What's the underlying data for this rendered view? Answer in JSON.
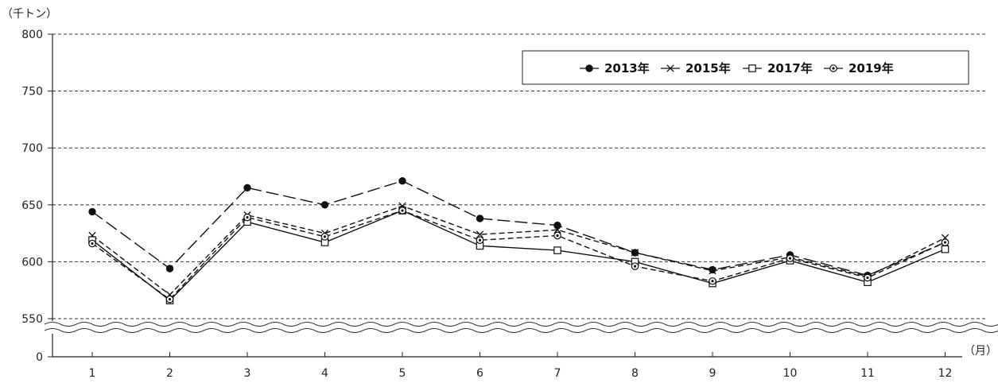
{
  "chart_data": {
    "type": "line",
    "ylabel": "（千トン）",
    "xlabel": "（月）",
    "categories": [
      "1",
      "2",
      "3",
      "4",
      "5",
      "6",
      "7",
      "8",
      "9",
      "10",
      "11",
      "12"
    ],
    "y_ticks": [
      "800",
      "750",
      "700",
      "650",
      "600",
      "550",
      "0"
    ],
    "ylim": [
      550,
      800
    ],
    "axis_break": true,
    "grid": "horizontal-dashed",
    "legend_position": "top-right",
    "series": [
      {
        "name": "2013年",
        "marker": "filled-circle",
        "dash": "long-dash",
        "values": [
          644,
          594,
          665,
          650,
          671,
          638,
          632,
          608,
          593,
          606,
          588,
          617
        ]
      },
      {
        "name": "2015年",
        "marker": "x-cross",
        "dash": "short-dash",
        "values": [
          623,
          571,
          641,
          625,
          649,
          624,
          628,
          608,
          592,
          604,
          587,
          621
        ]
      },
      {
        "name": "2017年",
        "marker": "open-square",
        "dash": "solid",
        "values": [
          619,
          566,
          635,
          617,
          645,
          614,
          610,
          600,
          581,
          601,
          582,
          611
        ]
      },
      {
        "name": "2019年",
        "marker": "dotted-circle",
        "dash": "short-dash",
        "values": [
          616,
          567,
          639,
          622,
          645,
          619,
          623,
          596,
          583,
          603,
          586,
          617
        ]
      }
    ]
  }
}
